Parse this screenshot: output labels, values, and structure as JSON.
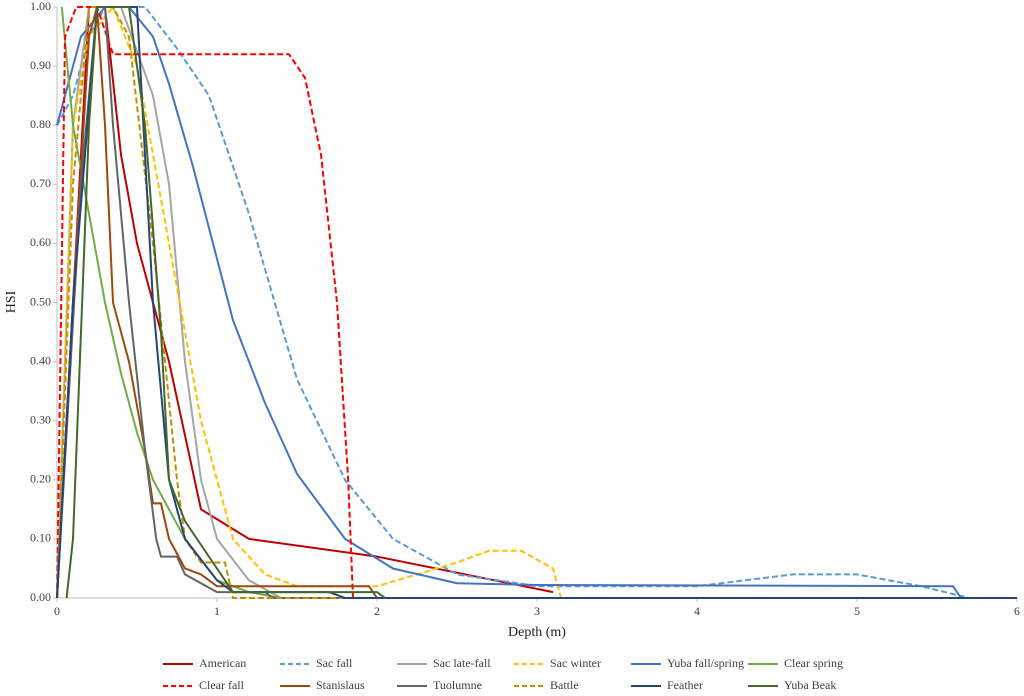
{
  "chart_data": {
    "type": "line",
    "xlabel": "Depth (m)",
    "ylabel": "HSI",
    "xlim": [
      0,
      6
    ],
    "ylim": [
      0,
      1
    ],
    "xticks": [
      0,
      1,
      2,
      3,
      4,
      5,
      6
    ],
    "yticks": [
      {
        "value": 0,
        "label": "0.00"
      },
      {
        "value": 0.1,
        "label": "0.10"
      },
      {
        "value": 0.2,
        "label": "0.20"
      },
      {
        "value": 0.3,
        "label": "0.30"
      },
      {
        "value": 0.4,
        "label": "0.40"
      },
      {
        "value": 0.5,
        "label": "0.50"
      },
      {
        "value": 0.6,
        "label": "0.60"
      },
      {
        "value": 0.7,
        "label": "0.70"
      },
      {
        "value": 0.8,
        "label": "0.80"
      },
      {
        "value": 0.9,
        "label": "0.90"
      },
      {
        "value": 1,
        "label": "1.00"
      }
    ],
    "grid": false,
    "legend": "bottom",
    "series": [
      {
        "name": "American",
        "color": "#c00000",
        "dash": false,
        "x": [
          0,
          0.2,
          0.3,
          0.4,
          0.5,
          0.7,
          0.9,
          1.2,
          2.0,
          3.1
        ],
        "values": [
          0,
          1,
          1,
          0.75,
          0.6,
          0.4,
          0.15,
          0.1,
          0.07,
          0.01
        ]
      },
      {
        "name": "Sac fall",
        "color": "#5b9bd5",
        "dash": true,
        "x": [
          0,
          0.1,
          0.2,
          0.3,
          0.55,
          0.75,
          0.95,
          1.2,
          1.5,
          1.8,
          2.1,
          2.5,
          3,
          4,
          4.6,
          5,
          5.4,
          5.7
        ],
        "values": [
          0.8,
          0.85,
          0.95,
          1,
          1,
          0.93,
          0.85,
          0.65,
          0.37,
          0.2,
          0.1,
          0.04,
          0.02,
          0.02,
          0.04,
          0.04,
          0.02,
          0
        ]
      },
      {
        "name": "Sac late-fall",
        "color": "#a5a5a5",
        "dash": false,
        "x": [
          0,
          0.1,
          0.2,
          0.4,
          0.6,
          0.7,
          0.8,
          0.9,
          1.0,
          1.2,
          1.4,
          6
        ],
        "values": [
          0,
          0.8,
          1,
          1,
          0.85,
          0.7,
          0.4,
          0.2,
          0.1,
          0.03,
          0,
          0
        ]
      },
      {
        "name": "Sac winter",
        "color": "#ffc000",
        "dash": true,
        "x": [
          0,
          0.1,
          0.2,
          0.35,
          0.5,
          0.7,
          0.9,
          1.1,
          1.3,
          1.5,
          2,
          2.5,
          2.7,
          2.9,
          3.1,
          3.15,
          6
        ],
        "values": [
          0,
          0.8,
          0.95,
          1,
          0.9,
          0.6,
          0.3,
          0.1,
          0.04,
          0.02,
          0.02,
          0.06,
          0.08,
          0.08,
          0.05,
          0,
          0
        ]
      },
      {
        "name": "Yuba fall/spring",
        "color": "#4472c4",
        "dash": false,
        "x": [
          0,
          0.15,
          0.3,
          0.45,
          0.6,
          0.7,
          0.85,
          1.1,
          1.3,
          1.5,
          1.8,
          2.1,
          2.5,
          3,
          5.6,
          5.65
        ],
        "values": [
          0.8,
          0.95,
          1,
          1,
          0.95,
          0.87,
          0.73,
          0.47,
          0.33,
          0.21,
          0.1,
          0.05,
          0.025,
          0.022,
          0.02,
          0
        ]
      },
      {
        "name": "Clear spring",
        "color": "#70ad47",
        "dash": false,
        "x": [
          0.03,
          0.1,
          0.2,
          0.3,
          0.4,
          0.5,
          0.6,
          0.8,
          1.0,
          1.2,
          1.4,
          6
        ],
        "values": [
          1,
          0.8,
          0.65,
          0.5,
          0.38,
          0.28,
          0.2,
          0.1,
          0.03,
          0.01,
          0,
          0
        ]
      },
      {
        "name": "Clear fall",
        "color": "#ff0000",
        "dash": true,
        "x": [
          0,
          0.05,
          0.12,
          0.25,
          0.35,
          1.45,
          1.55,
          1.65,
          1.75,
          1.82,
          1.85,
          6
        ],
        "values": [
          0,
          0.95,
          1,
          1,
          0.92,
          0.92,
          0.88,
          0.75,
          0.5,
          0.2,
          0,
          0
        ]
      },
      {
        "name": "Stanislaus",
        "color": "#9e480e",
        "dash": false,
        "x": [
          0,
          0.1,
          0.2,
          0.25,
          0.3,
          0.35,
          0.45,
          0.55,
          0.6,
          0.65,
          0.7,
          0.8,
          0.9,
          1.0,
          1.95,
          2.0
        ],
        "values": [
          0,
          0.5,
          0.95,
          1,
          0.8,
          0.5,
          0.4,
          0.25,
          0.16,
          0.16,
          0.1,
          0.05,
          0.04,
          0.02,
          0.02,
          0
        ]
      },
      {
        "name": "Tuolumne",
        "color": "#636363",
        "dash": false,
        "x": [
          0,
          0.15,
          0.25,
          0.3,
          0.35,
          0.45,
          0.55,
          0.62,
          0.65,
          0.75,
          0.8,
          1.0,
          1.3,
          1.35,
          6
        ],
        "values": [
          0,
          0.7,
          1,
          1,
          0.8,
          0.5,
          0.25,
          0.1,
          0.07,
          0.07,
          0.04,
          0.01,
          0.01,
          0,
          0
        ]
      },
      {
        "name": "Battle",
        "color": "#bf9000",
        "dash": true,
        "x": [
          0,
          0.1,
          0.2,
          0.35,
          0.45,
          0.6,
          0.75,
          0.8,
          0.9,
          1.05,
          1.1,
          6
        ],
        "values": [
          0,
          0.7,
          1,
          1,
          0.95,
          0.6,
          0.2,
          0.1,
          0.06,
          0.06,
          0,
          0
        ]
      },
      {
        "name": "Feather",
        "color": "#264478",
        "dash": false,
        "x": [
          0,
          0.1,
          0.25,
          0.5,
          0.6,
          0.7,
          0.8,
          1.0,
          1.1,
          1.7,
          1.8,
          6
        ],
        "values": [
          0,
          0.5,
          1,
          1,
          0.5,
          0.2,
          0.1,
          0.03,
          0.01,
          0.01,
          0,
          0
        ]
      },
      {
        "name": "Yuba Beak",
        "color": "#43682b",
        "dash": false,
        "x": [
          0.06,
          0.1,
          0.2,
          0.25,
          0.45,
          0.55,
          0.65,
          0.7,
          0.8,
          1.0,
          1.1,
          2,
          2.05
        ],
        "values": [
          0,
          0.1,
          0.8,
          1,
          1,
          0.8,
          0.45,
          0.2,
          0.13,
          0.05,
          0.01,
          0.01,
          0
        ]
      }
    ]
  }
}
